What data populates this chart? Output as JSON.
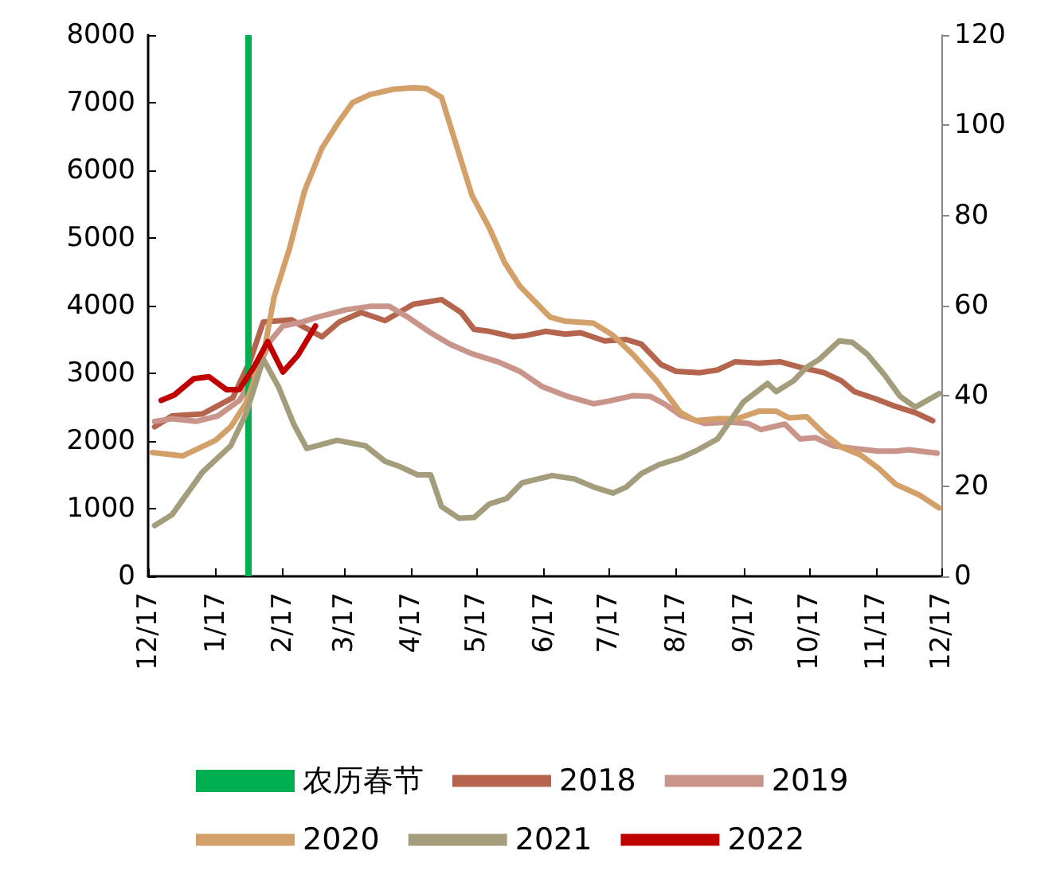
{
  "chart_data": {
    "type": "line",
    "legend": "bottom",
    "grid": false,
    "marker": "none",
    "line_style": "solid",
    "xlim": [
      "2021-12-17",
      "2022-12-17"
    ],
    "xticks": [
      {
        "value": "2021-12-17",
        "label": "12/17"
      },
      {
        "value": "2022-01-17",
        "label": "1/17"
      },
      {
        "value": "2022-02-17",
        "label": "2/17"
      },
      {
        "value": "2022-03-17",
        "label": "3/17"
      },
      {
        "value": "2022-04-17",
        "label": "4/17"
      },
      {
        "value": "2022-05-17",
        "label": "5/17"
      },
      {
        "value": "2022-06-17",
        "label": "6/17"
      },
      {
        "value": "2022-07-17",
        "label": "7/17"
      },
      {
        "value": "2022-08-17",
        "label": "8/17"
      },
      {
        "value": "2022-09-17",
        "label": "9/17"
      },
      {
        "value": "2022-10-17",
        "label": "10/17"
      },
      {
        "value": "2022-11-17",
        "label": "11/17"
      },
      {
        "value": "2022-12-17",
        "label": "12/17"
      }
    ],
    "ylim": [
      0,
      8000
    ],
    "yticks": [
      0,
      1000,
      2000,
      3000,
      4000,
      5000,
      6000,
      7000,
      8000
    ],
    "y2lim": [
      0,
      120
    ],
    "y2ticks": [
      0,
      20,
      40,
      60,
      80,
      100,
      120
    ],
    "ref_lines": [
      {
        "axis": "x",
        "value": "2022-02-01",
        "label": "农历春节",
        "color": "#00b050"
      }
    ],
    "series": [
      {
        "name": "2018",
        "color": "#b5654d",
        "x": [
          "2021-12-20",
          "2021-12-28",
          "2022-01-11",
          "2022-01-18",
          "2022-01-25",
          "2022-02-02",
          "2022-02-08",
          "2022-02-21",
          "2022-02-28",
          "2022-03-07",
          "2022-03-15",
          "2022-03-25",
          "2022-04-05",
          "2022-04-18",
          "2022-05-01",
          "2022-05-10",
          "2022-05-16",
          "2022-05-23",
          "2022-06-03",
          "2022-06-09",
          "2022-06-18",
          "2022-06-27",
          "2022-07-04",
          "2022-07-15",
          "2022-07-25",
          "2022-08-01",
          "2022-08-10",
          "2022-08-17",
          "2022-08-28",
          "2022-09-05",
          "2022-09-13",
          "2022-09-24",
          "2022-10-04",
          "2022-10-13",
          "2022-10-24",
          "2022-11-01",
          "2022-11-07",
          "2022-11-17",
          "2022-11-26",
          "2022-12-05",
          "2022-12-13"
        ],
        "values": [
          2210,
          2370,
          2400,
          2520,
          2640,
          3190,
          3760,
          3790,
          3660,
          3540,
          3760,
          3900,
          3780,
          4020,
          4090,
          3900,
          3650,
          3620,
          3540,
          3560,
          3620,
          3580,
          3600,
          3480,
          3500,
          3430,
          3130,
          3030,
          3010,
          3050,
          3170,
          3150,
          3170,
          3090,
          3010,
          2890,
          2730,
          2620,
          2510,
          2420,
          2300
        ]
      },
      {
        "name": "2019",
        "color": "#c9958a",
        "x": [
          "2021-12-20",
          "2021-12-28",
          "2022-01-08",
          "2022-01-18",
          "2022-01-28",
          "2022-02-04",
          "2022-02-11",
          "2022-02-17",
          "2022-02-26",
          "2022-03-05",
          "2022-03-18",
          "2022-03-29",
          "2022-04-07",
          "2022-04-16",
          "2022-04-26",
          "2022-05-05",
          "2022-05-15",
          "2022-05-27",
          "2022-06-06",
          "2022-06-16",
          "2022-06-28",
          "2022-07-10",
          "2022-07-17",
          "2022-07-28",
          "2022-08-05",
          "2022-08-12",
          "2022-08-19",
          "2022-08-30",
          "2022-09-10",
          "2022-09-19",
          "2022-09-25",
          "2022-10-06",
          "2022-10-13",
          "2022-10-20",
          "2022-10-28",
          "2022-11-07",
          "2022-11-18",
          "2022-11-26",
          "2022-12-02",
          "2022-12-15"
        ],
        "values": [
          2290,
          2330,
          2290,
          2370,
          2600,
          2950,
          3470,
          3700,
          3760,
          3830,
          3940,
          3990,
          3990,
          3820,
          3600,
          3430,
          3290,
          3170,
          3030,
          2810,
          2660,
          2550,
          2590,
          2670,
          2660,
          2540,
          2380,
          2260,
          2280,
          2260,
          2170,
          2250,
          2030,
          2050,
          1930,
          1890,
          1850,
          1850,
          1870,
          1820
        ]
      },
      {
        "name": "2020",
        "color": "#d4a06a",
        "x": [
          "2021-12-19",
          "2022-01-02",
          "2022-01-17",
          "2022-01-24",
          "2022-01-31",
          "2022-02-08",
          "2022-02-13",
          "2022-02-20",
          "2022-02-27",
          "2022-03-07",
          "2022-03-15",
          "2022-03-21",
          "2022-03-29",
          "2022-04-09",
          "2022-04-18",
          "2022-04-24",
          "2022-05-01",
          "2022-05-09",
          "2022-05-15",
          "2022-05-23",
          "2022-05-30",
          "2022-06-06",
          "2022-06-20",
          "2022-06-27",
          "2022-07-10",
          "2022-07-19",
          "2022-07-28",
          "2022-08-08",
          "2022-08-19",
          "2022-08-26",
          "2022-09-05",
          "2022-09-14",
          "2022-09-24",
          "2022-10-02",
          "2022-10-08",
          "2022-10-16",
          "2022-10-24",
          "2022-11-01",
          "2022-11-10",
          "2022-11-18",
          "2022-11-26",
          "2022-12-07",
          "2022-12-16"
        ],
        "values": [
          1830,
          1780,
          2010,
          2210,
          2560,
          3270,
          4130,
          4840,
          5700,
          6330,
          6730,
          7000,
          7120,
          7200,
          7220,
          7210,
          7080,
          6250,
          5630,
          5150,
          4640,
          4290,
          3830,
          3770,
          3740,
          3560,
          3280,
          2890,
          2420,
          2300,
          2330,
          2330,
          2440,
          2440,
          2340,
          2360,
          2110,
          1910,
          1790,
          1600,
          1360,
          1200,
          1010
        ]
      },
      {
        "name": "2021",
        "color": "#a39d7c",
        "x": [
          "2021-12-20",
          "2021-12-28",
          "2022-01-11",
          "2022-01-24",
          "2022-01-31",
          "2022-02-08",
          "2022-02-15",
          "2022-02-22",
          "2022-02-28",
          "2022-03-14",
          "2022-03-27",
          "2022-04-05",
          "2022-04-12",
          "2022-04-20",
          "2022-04-26",
          "2022-05-01",
          "2022-05-09",
          "2022-05-16",
          "2022-05-23",
          "2022-05-31",
          "2022-06-07",
          "2022-06-21",
          "2022-07-01",
          "2022-07-10",
          "2022-07-19",
          "2022-07-25",
          "2022-08-01",
          "2022-08-09",
          "2022-08-19",
          "2022-08-27",
          "2022-09-05",
          "2022-09-10",
          "2022-09-17",
          "2022-09-28",
          "2022-10-02",
          "2022-10-10",
          "2022-10-16",
          "2022-10-22",
          "2022-10-31",
          "2022-11-06",
          "2022-11-13",
          "2022-11-21",
          "2022-11-28",
          "2022-12-05",
          "2022-12-16"
        ],
        "values": [
          750,
          910,
          1540,
          1930,
          2400,
          3210,
          2800,
          2250,
          1890,
          2010,
          1930,
          1700,
          1620,
          1500,
          1500,
          1030,
          860,
          870,
          1070,
          1150,
          1380,
          1490,
          1440,
          1320,
          1230,
          1320,
          1520,
          1650,
          1750,
          1870,
          2030,
          2260,
          2580,
          2850,
          2730,
          2890,
          3090,
          3210,
          3480,
          3460,
          3280,
          2970,
          2660,
          2500,
          2700
        ]
      },
      {
        "name": "2022",
        "color": "#c00000",
        "x": [
          "2021-12-23",
          "2021-12-29",
          "2022-01-07",
          "2022-01-14",
          "2022-01-22",
          "2022-01-28",
          "2022-02-04",
          "2022-02-10",
          "2022-02-17",
          "2022-02-24",
          "2022-03-04"
        ],
        "values": [
          2600,
          2680,
          2920,
          2950,
          2760,
          2760,
          3110,
          3470,
          3020,
          3270,
          3700
        ]
      }
    ]
  }
}
